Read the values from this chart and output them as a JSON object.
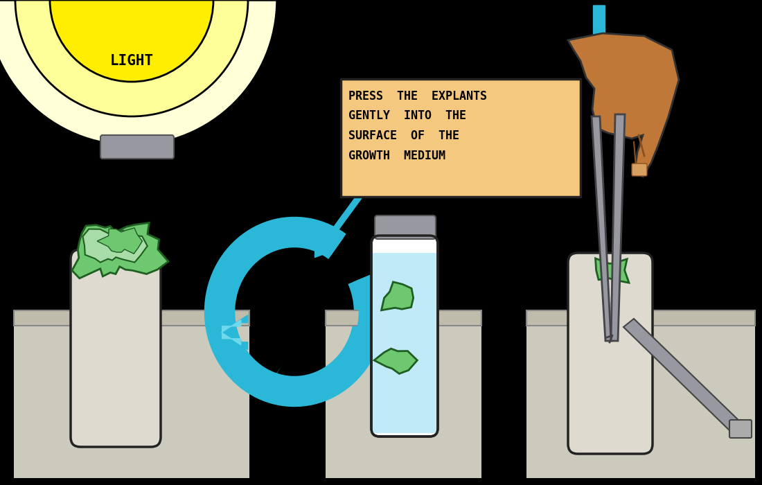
{
  "bg_color": "#000000",
  "light_pale": "#FFFFD8",
  "light_mid": "#FFFF99",
  "light_bright": "#FFEE00",
  "tube_color": "#DEDAD0",
  "tube_outline": "#222222",
  "shelf_color": "#C8C4B0",
  "green_plant": "#6EC870",
  "green_plant_light": "#A8DCA8",
  "green_plant_dark": "#1E5E20",
  "blue_color": "#2BB8D8",
  "blue_light": "#6ED8EC",
  "box_bg": "#F5C880",
  "box_outline": "#222222",
  "water_color": "#C0EAF8",
  "hand_color": "#C07838",
  "hand_dark": "#8B5020",
  "tweezer_color": "#9898A0",
  "tweezer_dark": "#444448",
  "gray_cap": "#9898A0",
  "cap_outline": "#555555",
  "label_text": "PRESS  THE  EXPLANTS\nGENTLY  INTO  THE\nSURFACE  OF  THE\nGROWTH  MEDIUM",
  "light_text": "LIGHT"
}
